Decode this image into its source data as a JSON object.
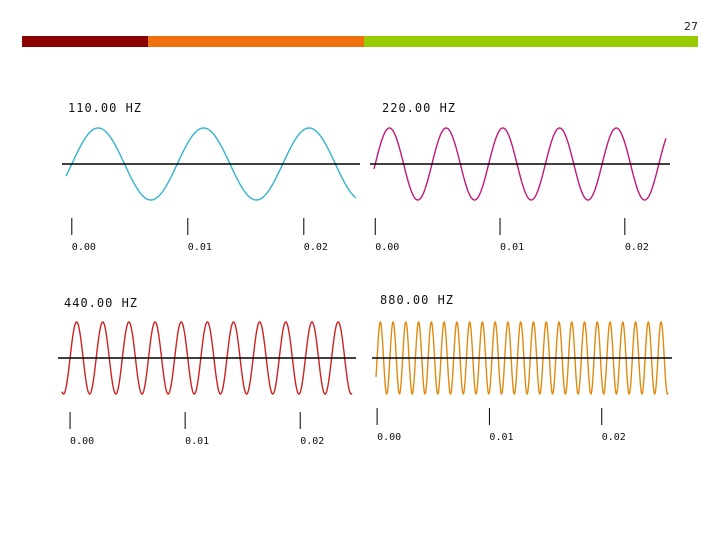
{
  "slide": {
    "number": "27",
    "bar_colors": [
      "#8b0000",
      "#f07010",
      "#99cc00"
    ]
  },
  "chart_data": [
    {
      "type": "line",
      "title": "110.00 HZ",
      "frequency_hz": 110,
      "x_range": [
        -0.0005,
        0.0245
      ],
      "color": "#33b3cc",
      "xticks": [
        0,
        0.01,
        0.02
      ],
      "xtick_labels": [
        "0.00",
        "0.01",
        "0.02"
      ]
    },
    {
      "type": "line",
      "title": "220.00 HZ",
      "frequency_hz": 220,
      "x_range": [
        -0.0001,
        0.0233
      ],
      "color": "#c0187a",
      "xticks": [
        0,
        0.01,
        0.02
      ],
      "xtick_labels": [
        "0.00",
        "0.01",
        "0.02"
      ]
    },
    {
      "type": "line",
      "title": "440.00 HZ",
      "frequency_hz": 440,
      "x_range": [
        -0.0007,
        0.0245
      ],
      "color": "#cc2222",
      "xticks": [
        0,
        0.01,
        0.02
      ],
      "xtick_labels": [
        "0.00",
        "0.01",
        "0.02"
      ]
    },
    {
      "type": "line",
      "title": "880.00 HZ",
      "frequency_hz": 880,
      "x_range": [
        -0.0001,
        0.0259
      ],
      "color": "#e08a10",
      "xticks": [
        0,
        0.01,
        0.02
      ],
      "xtick_labels": [
        "0.00",
        "0.01",
        "0.02"
      ]
    }
  ]
}
